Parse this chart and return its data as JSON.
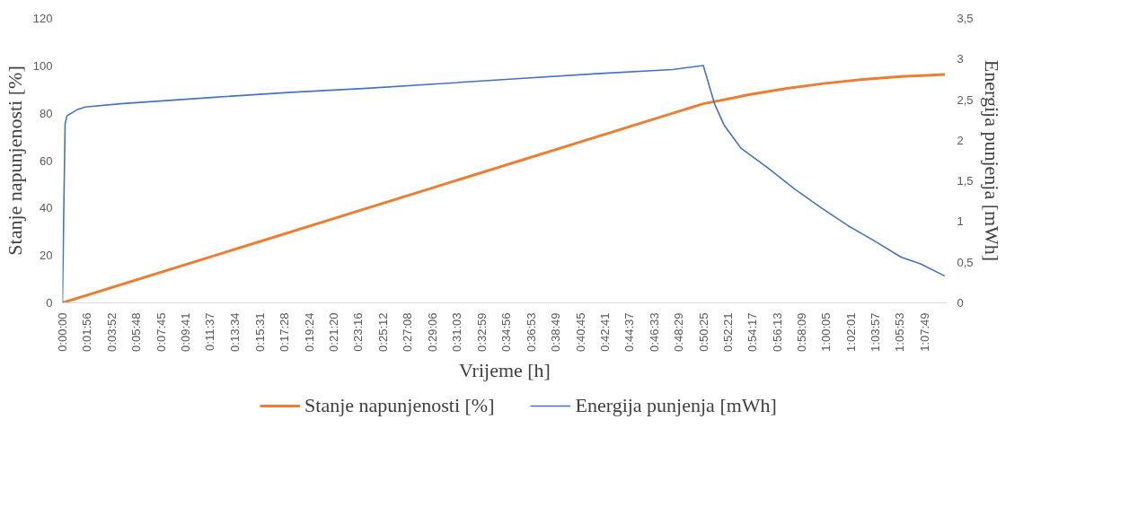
{
  "chart_data": {
    "type": "line",
    "xlabel": "Vrijeme [h]",
    "ylabel": "Stanje napunjenosti [%]",
    "y2label": "Energija punjenja [mWh]",
    "xlim": [
      0,
      1.16
    ],
    "ylim": [
      0,
      120
    ],
    "yticks": [
      0,
      20,
      40,
      60,
      80,
      100,
      120
    ],
    "y2lim": [
      0,
      3.5
    ],
    "y2ticks": [
      0,
      {
        "value": 0.5,
        "label": "0,5"
      },
      1,
      {
        "value": 1.5,
        "label": "1,5"
      },
      2,
      {
        "value": 2.5,
        "label": "2,5"
      },
      3,
      {
        "value": 3.5,
        "label": "3,5"
      }
    ],
    "xticks": [
      {
        "value": 0,
        "label": "0:00:00"
      },
      {
        "value": 0.0322,
        "label": "0:01:56"
      },
      {
        "value": 0.0644,
        "label": "0:03:52"
      },
      {
        "value": 0.0967,
        "label": "0:05:48"
      },
      {
        "value": 0.1292,
        "label": "0:07:45"
      },
      {
        "value": 0.1614,
        "label": "0:09:41"
      },
      {
        "value": 0.1936,
        "label": "0:11:37"
      },
      {
        "value": 0.2261,
        "label": "0:13:34"
      },
      {
        "value": 0.2586,
        "label": "0:15:31"
      },
      {
        "value": 0.2911,
        "label": "0:17:28"
      },
      {
        "value": 0.3233,
        "label": "0:19:24"
      },
      {
        "value": 0.3556,
        "label": "0:21:20"
      },
      {
        "value": 0.3878,
        "label": "0:23:16"
      },
      {
        "value": 0.42,
        "label": "0:25:12"
      },
      {
        "value": 0.4522,
        "label": "0:27:08"
      },
      {
        "value": 0.485,
        "label": "0:29:06"
      },
      {
        "value": 0.5175,
        "label": "0:31:03"
      },
      {
        "value": 0.5497,
        "label": "0:32:59"
      },
      {
        "value": 0.5822,
        "label": "0:34:56"
      },
      {
        "value": 0.6147,
        "label": "0:36:53"
      },
      {
        "value": 0.6469,
        "label": "0:38:49"
      },
      {
        "value": 0.6792,
        "label": "0:40:45"
      },
      {
        "value": 0.7114,
        "label": "0:42:41"
      },
      {
        "value": 0.7436,
        "label": "0:44:37"
      },
      {
        "value": 0.7758,
        "label": "0:46:33"
      },
      {
        "value": 0.8081,
        "label": "0:48:29"
      },
      {
        "value": 0.8403,
        "label": "0:50:25"
      },
      {
        "value": 0.8725,
        "label": "0:52:21"
      },
      {
        "value": 0.9047,
        "label": "0:54:17"
      },
      {
        "value": 0.9369,
        "label": "0:56:13"
      },
      {
        "value": 0.9692,
        "label": "0:58:09"
      },
      {
        "value": 1.0014,
        "label": "1:00:05"
      },
      {
        "value": 1.0336,
        "label": "1:02:01"
      },
      {
        "value": 1.0658,
        "label": "1:03:57"
      },
      {
        "value": 1.0981,
        "label": "1:05:53"
      },
      {
        "value": 1.1303,
        "label": "1:07:49"
      }
    ],
    "grid": false,
    "legend": "bottom",
    "marker": "none",
    "line_style": "solid",
    "series": [
      {
        "name": "Stanje napunjenosti [%]",
        "color": "#ed7d31",
        "x": [
          0,
          0.8403,
          0.87,
          0.9,
          0.95,
          1.0,
          1.05,
          1.1,
          1.157
        ],
        "values": [
          0,
          84,
          85.8,
          87.8,
          90.5,
          92.6,
          94.3,
          95.5,
          96.3
        ]
      },
      {
        "name": "Energija punjenja [mWh]",
        "color": "#4472c4",
        "axis": "y2",
        "x": [
          0,
          0.0035,
          0.006,
          0.02,
          0.03,
          0.076,
          0.2,
          0.3,
          0.4,
          0.5,
          0.6,
          0.7,
          0.8,
          0.8403,
          0.855,
          0.868,
          0.89,
          0.925,
          0.96,
          0.995,
          1.03,
          1.065,
          1.1,
          1.125,
          1.157
        ],
        "values": [
          0,
          2.2,
          2.3,
          2.38,
          2.41,
          2.45,
          2.53,
          2.59,
          2.64,
          2.7,
          2.76,
          2.82,
          2.87,
          2.92,
          2.45,
          2.18,
          1.9,
          1.66,
          1.4,
          1.17,
          0.95,
          0.76,
          0.56,
          0.48,
          0.33
        ]
      }
    ]
  }
}
